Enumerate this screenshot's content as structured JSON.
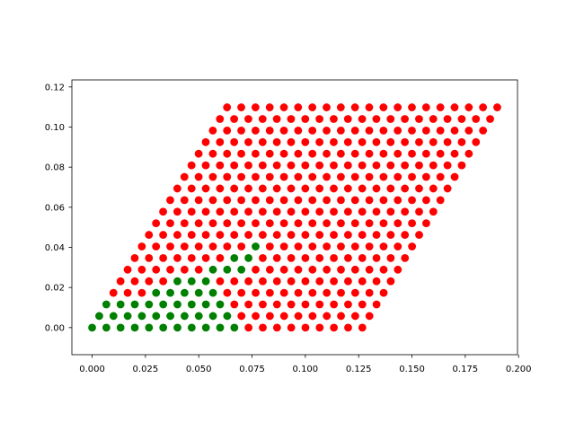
{
  "chart_data": {
    "type": "scatter",
    "title": "",
    "xlabel": "",
    "ylabel": "",
    "xlim": [
      -0.0095,
      0.1995
    ],
    "ylim": [
      -0.0135,
      0.1235
    ],
    "x_ticks": [
      0.0,
      0.025,
      0.05,
      0.075,
      0.1,
      0.125,
      0.15,
      0.175,
      0.2
    ],
    "x_tick_labels": [
      "0.000",
      "0.025",
      "0.050",
      "0.075",
      "0.100",
      "0.125",
      "0.150",
      "0.175",
      "0.200"
    ],
    "y_ticks": [
      0.0,
      0.02,
      0.04,
      0.06,
      0.08,
      0.1,
      0.12
    ],
    "y_tick_labels": [
      "0.00",
      "0.02",
      "0.04",
      "0.06",
      "0.08",
      "0.10",
      "0.12"
    ],
    "grid": false,
    "lattice": {
      "rows": 20,
      "cols": 20,
      "dx": 0.00667,
      "row_x_offset": 0.00333,
      "row_dy": 0.00578,
      "description_note": "point (i,j): x = i*dx + j*row_x_offset, y = j*row_dy"
    },
    "series": [
      {
        "color": "#008000",
        "points_ij": [
          [
            0,
            0
          ],
          [
            1,
            0
          ],
          [
            2,
            0
          ],
          [
            3,
            0
          ],
          [
            4,
            0
          ],
          [
            5,
            0
          ],
          [
            6,
            0
          ],
          [
            7,
            0
          ],
          [
            8,
            0
          ],
          [
            9,
            0
          ],
          [
            10,
            0
          ],
          [
            0,
            1
          ],
          [
            1,
            1
          ],
          [
            2,
            1
          ],
          [
            3,
            1
          ],
          [
            4,
            1
          ],
          [
            5,
            1
          ],
          [
            6,
            1
          ],
          [
            7,
            1
          ],
          [
            8,
            1
          ],
          [
            9,
            1
          ],
          [
            0,
            2
          ],
          [
            1,
            2
          ],
          [
            2,
            2
          ],
          [
            3,
            2
          ],
          [
            4,
            2
          ],
          [
            5,
            2
          ],
          [
            6,
            2
          ],
          [
            7,
            2
          ],
          [
            8,
            2
          ],
          [
            3,
            3
          ],
          [
            4,
            3
          ],
          [
            5,
            3
          ],
          [
            6,
            3
          ],
          [
            7,
            3
          ],
          [
            4,
            4
          ],
          [
            5,
            4
          ],
          [
            6,
            4
          ],
          [
            6,
            5
          ],
          [
            7,
            5
          ],
          [
            8,
            5
          ],
          [
            7,
            6
          ],
          [
            8,
            6
          ],
          [
            8,
            7
          ]
        ]
      },
      {
        "color": "#ff0000",
        "rest_of_lattice": true
      }
    ]
  }
}
